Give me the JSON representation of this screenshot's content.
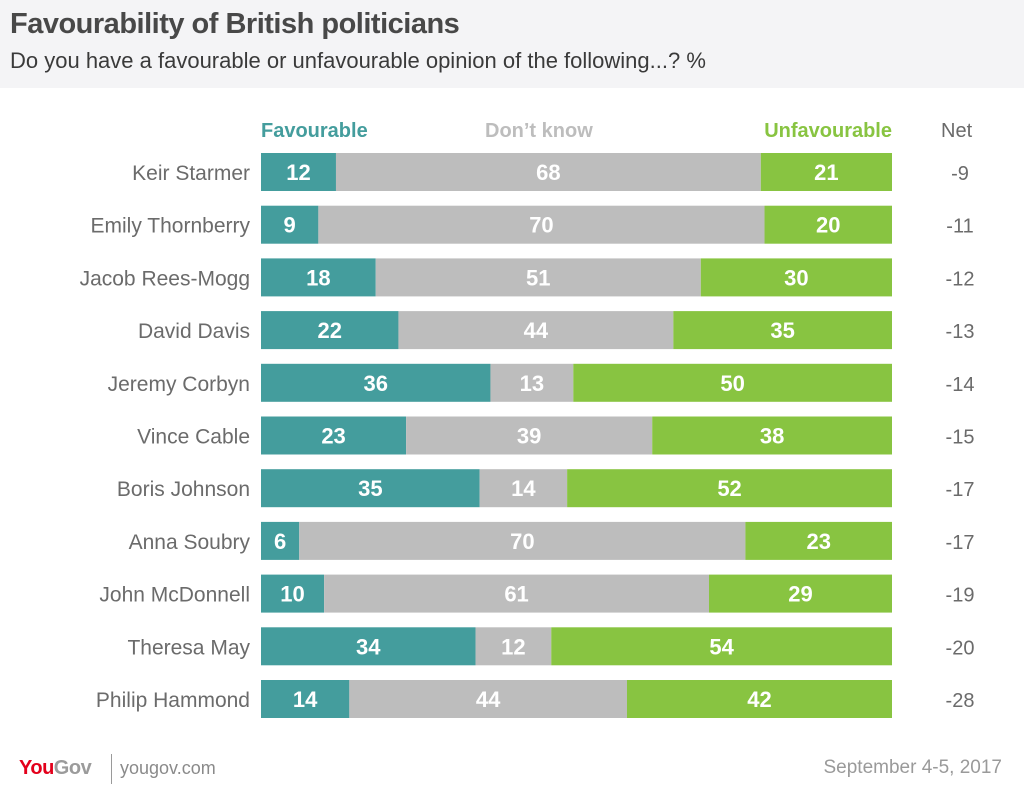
{
  "header": {
    "title": "Favourability of British politicians",
    "subtitle": "Do you have a favourable or unfavourable opinion of the following...? %"
  },
  "footer": {
    "logo_you": "You",
    "logo_gov": "Gov",
    "url": "yougov.com",
    "date": "September 4-5, 2017"
  },
  "colors": {
    "favourable": "#449d9d",
    "dont_know": "#bdbdbd",
    "unfavourable": "#88c441",
    "brand_red": "#e3001b",
    "brand_gray": "#9b9b9b"
  },
  "chart_data": {
    "type": "bar",
    "orientation": "horizontal-stacked",
    "title": "Favourability of British politicians",
    "subtitle": "Do you have a favourable or unfavourable opinion of the following...? %",
    "xlabel": "",
    "ylabel": "",
    "xlim": [
      0,
      101
    ],
    "grid": false,
    "legend_position": "top",
    "categories": [
      "Keir Starmer",
      "Emily Thornberry",
      "Jacob Rees-Mogg",
      "David Davis",
      "Jeremy Corbyn",
      "Vince Cable",
      "Boris Johnson",
      "Anna Soubry",
      "John McDonnell",
      "Theresa May",
      "Philip Hammond"
    ],
    "series": [
      {
        "name": "Favourable",
        "values": [
          12,
          9,
          18,
          22,
          36,
          23,
          35,
          6,
          10,
          34,
          14
        ]
      },
      {
        "name": "Don’t know",
        "values": [
          68,
          70,
          51,
          44,
          13,
          39,
          14,
          70,
          61,
          12,
          44
        ]
      },
      {
        "name": "Unfavourable",
        "values": [
          21,
          20,
          30,
          35,
          50,
          38,
          52,
          23,
          29,
          54,
          42
        ]
      }
    ],
    "net_label": "Net",
    "net": [
      "-9",
      "-11",
      "-12",
      "-13",
      "-14",
      "-15",
      "-17",
      "-17",
      "-19",
      "-20",
      "-28"
    ]
  }
}
